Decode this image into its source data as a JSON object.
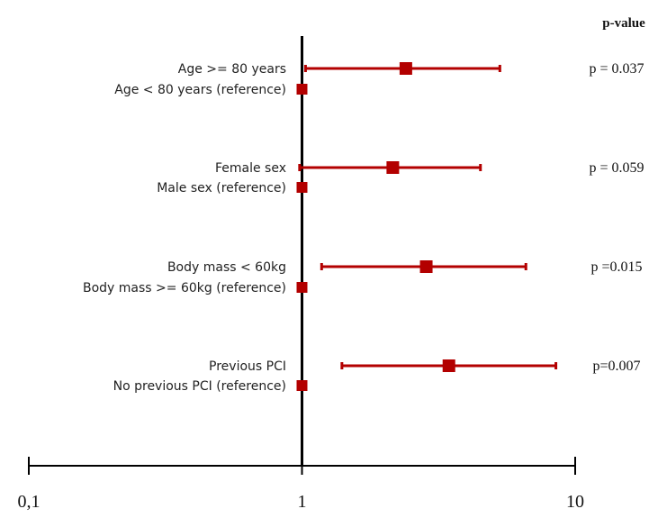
{
  "chart_data": {
    "type": "forest",
    "title": "",
    "pvalue_header": "p-value",
    "x_scale": "log",
    "xlim": [
      0.1,
      10
    ],
    "x_ticks": [
      {
        "value": 0.1,
        "label": "0,1"
      },
      {
        "value": 1,
        "label": "1"
      },
      {
        "value": 10,
        "label": "10"
      }
    ],
    "reference_line": 1,
    "colors": {
      "marker": "#b30000",
      "axis": "#000000"
    },
    "rows": [
      {
        "label": "Age >= 80 years",
        "estimate": 2.4,
        "ci_low": 1.03,
        "ci_high": 5.3,
        "p_value": "p = 0.037"
      },
      {
        "label": "Age < 80 years (reference)",
        "estimate": 1,
        "is_reference": true
      },
      {
        "label": "Female sex",
        "estimate": 2.15,
        "ci_low": 0.98,
        "ci_high": 4.5,
        "p_value": "p = 0.059"
      },
      {
        "label": "Male sex (reference)",
        "estimate": 1,
        "is_reference": true
      },
      {
        "label": "Body mass < 60kg",
        "estimate": 2.85,
        "ci_low": 1.18,
        "ci_high": 6.6,
        "p_value": "p =0.015"
      },
      {
        "label": "Body mass >=  60kg (reference)",
        "estimate": 1,
        "is_reference": true
      },
      {
        "label": "Previous PCI",
        "estimate": 3.45,
        "ci_low": 1.4,
        "ci_high": 8.5,
        "p_value": "p=0.007"
      },
      {
        "label": "No previous PCI (reference)",
        "estimate": 1,
        "is_reference": true
      }
    ]
  }
}
